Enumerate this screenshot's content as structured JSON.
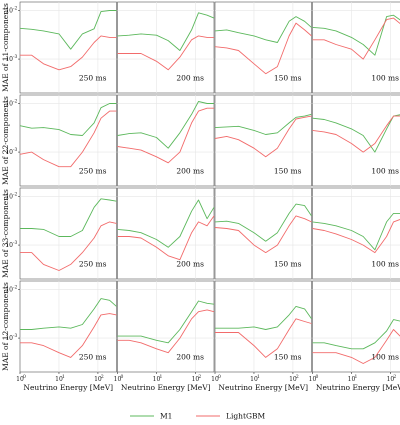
{
  "figure": {
    "legend_items": [
      {
        "name": "M1",
        "color": "#5cb85c"
      },
      {
        "name": "LightGBM",
        "color": "#f26b6b"
      }
    ],
    "xlabel": "Neutrino Energy [MeV]",
    "x_ticks": [
      "10",
      "10",
      "10"
    ],
    "x_tick_exp": [
      "0",
      "1",
      "2"
    ],
    "y_ticks": [
      "10",
      "10"
    ],
    "y_tick_exp": [
      "-2",
      "-3"
    ],
    "colors": {
      "grid": "#e6e6e6",
      "frame": "#555555",
      "panel_bg": "#ffffff"
    }
  },
  "chart_data": {
    "type": "line",
    "x_scale": "log",
    "y_scale": "log",
    "xlim": [
      1,
      300
    ],
    "ylim": [
      0.0002,
      0.015
    ],
    "x": [
      1,
      2,
      4,
      10,
      20,
      40,
      80,
      120,
      200,
      300
    ],
    "columns": [
      "250 ms",
      "200 ms",
      "150 ms",
      "100 ms"
    ],
    "rows": [
      {
        "ylabel": "MAE of 11-components",
        "panels": [
          {
            "label": "250 ms",
            "series": [
              {
                "name": "M1",
                "values": [
                  0.0043,
                  0.0041,
                  0.0038,
                  0.0033,
                  0.0016,
                  0.0033,
                  0.0042,
                  0.0095,
                  0.01,
                  0.01
                ]
              },
              {
                "name": "LightGBM",
                "values": [
                  0.0012,
                  0.0012,
                  0.0008,
                  0.0006,
                  0.0007,
                  0.0011,
                  0.0022,
                  0.003,
                  0.0028,
                  0.0028
                ]
              }
            ]
          },
          {
            "label": "200 ms",
            "series": [
              {
                "name": "M1",
                "values": [
                  0.003,
                  0.0031,
                  0.0033,
                  0.0031,
                  0.0024,
                  0.0015,
                  0.004,
                  0.009,
                  0.008,
                  0.007
                ]
              },
              {
                "name": "LightGBM",
                "values": [
                  0.0013,
                  0.0013,
                  0.0013,
                  0.0009,
                  0.0006,
                  0.0011,
                  0.0025,
                  0.003,
                  0.0028,
                  0.0028
                ]
              }
            ]
          },
          {
            "label": "150 ms",
            "series": [
              {
                "name": "M1",
                "values": [
                  0.0038,
                  0.004,
                  0.0035,
                  0.003,
                  0.0025,
                  0.0022,
                  0.006,
                  0.0075,
                  0.006,
                  0.0045
                ]
              },
              {
                "name": "LightGBM",
                "values": [
                  0.0018,
                  0.0017,
                  0.0015,
                  0.0008,
                  0.0005,
                  0.0007,
                  0.003,
                  0.0055,
                  0.004,
                  0.003
                ]
              }
            ]
          },
          {
            "label": "100 ms",
            "series": [
              {
                "name": "M1",
                "values": [
                  0.0045,
                  0.0043,
                  0.0038,
                  0.0028,
                  0.002,
                  0.0012,
                  0.0075,
                  0.008,
                  0.006,
                  0.005
                ]
              },
              {
                "name": "LightGBM",
                "values": [
                  0.0025,
                  0.0025,
                  0.002,
                  0.0016,
                  0.001,
                  0.0025,
                  0.0065,
                  0.007,
                  0.005,
                  0.0035
                ]
              }
            ]
          }
        ]
      },
      {
        "ylabel": "MAE of 22-components",
        "panels": [
          {
            "label": "250 ms",
            "series": [
              {
                "name": "M1",
                "values": [
                  0.0035,
                  0.0031,
                  0.0032,
                  0.0029,
                  0.0023,
                  0.0022,
                  0.004,
                  0.0082,
                  0.01,
                  0.01
                ]
              },
              {
                "name": "LightGBM",
                "values": [
                  0.0009,
                  0.001,
                  0.0007,
                  0.0005,
                  0.0005,
                  0.001,
                  0.0025,
                  0.005,
                  0.007,
                  0.007
                ]
              }
            ]
          },
          {
            "label": "200 ms",
            "series": [
              {
                "name": "M1",
                "values": [
                  0.0022,
                  0.0024,
                  0.0025,
                  0.002,
                  0.0012,
                  0.0025,
                  0.006,
                  0.011,
                  0.01,
                  0.01
                ]
              },
              {
                "name": "LightGBM",
                "values": [
                  0.0013,
                  0.0012,
                  0.0011,
                  0.0008,
                  0.0006,
                  0.001,
                  0.004,
                  0.007,
                  0.008,
                  0.008
                ]
              }
            ]
          },
          {
            "label": "150 ms",
            "series": [
              {
                "name": "M1",
                "values": [
                  0.0032,
                  0.0033,
                  0.0034,
                  0.0028,
                  0.0023,
                  0.0025,
                  0.004,
                  0.0052,
                  0.0055,
                  0.006
                ]
              },
              {
                "name": "LightGBM",
                "values": [
                  0.0019,
                  0.0021,
                  0.0018,
                  0.0012,
                  0.0008,
                  0.0012,
                  0.003,
                  0.0048,
                  0.0052,
                  0.0055
                ]
              }
            ]
          },
          {
            "label": "100 ms",
            "series": [
              {
                "name": "M1",
                "values": [
                  0.005,
                  0.0047,
                  0.004,
                  0.003,
                  0.0022,
                  0.001,
                  0.003,
                  0.0055,
                  0.006,
                  0.0055
                ]
              },
              {
                "name": "LightGBM",
                "values": [
                  0.0028,
                  0.0026,
                  0.0023,
                  0.0015,
                  0.001,
                  0.0015,
                  0.0035,
                  0.0055,
                  0.0055,
                  0.005
                ]
              }
            ]
          }
        ]
      },
      {
        "ylabel": "MAE of 33-components",
        "panels": [
          {
            "label": "250 ms",
            "series": [
              {
                "name": "M1",
                "values": [
                  0.0022,
                  0.0022,
                  0.0021,
                  0.0015,
                  0.0015,
                  0.002,
                  0.006,
                  0.009,
                  0.0085,
                  0.008
                ]
              },
              {
                "name": "LightGBM",
                "values": [
                  0.0007,
                  0.0007,
                  0.0004,
                  0.0003,
                  0.0004,
                  0.0007,
                  0.0014,
                  0.0025,
                  0.003,
                  0.0028
                ]
              }
            ]
          },
          {
            "label": "200 ms",
            "series": [
              {
                "name": "M1",
                "values": [
                  0.0021,
                  0.002,
                  0.0018,
                  0.0013,
                  0.0009,
                  0.0015,
                  0.005,
                  0.0085,
                  0.0035,
                  0.006
                ]
              },
              {
                "name": "LightGBM",
                "values": [
                  0.0015,
                  0.0015,
                  0.0014,
                  0.0009,
                  0.0006,
                  0.0005,
                  0.0018,
                  0.003,
                  0.0025,
                  0.004
                ]
              }
            ]
          },
          {
            "label": "150 ms",
            "series": [
              {
                "name": "M1",
                "values": [
                  0.003,
                  0.0031,
                  0.0028,
                  0.0018,
                  0.0012,
                  0.0018,
                  0.0045,
                  0.007,
                  0.0065,
                  0.004
                ]
              },
              {
                "name": "LightGBM",
                "values": [
                  0.0023,
                  0.0022,
                  0.002,
                  0.001,
                  0.0007,
                  0.001,
                  0.0025,
                  0.004,
                  0.0035,
                  0.003
                ]
              }
            ]
          },
          {
            "label": "100 ms",
            "series": [
              {
                "name": "M1",
                "values": [
                  0.003,
                  0.0028,
                  0.0025,
                  0.002,
                  0.0015,
                  0.0008,
                  0.003,
                  0.0045,
                  0.0045,
                  0.0065
                ]
              },
              {
                "name": "LightGBM",
                "values": [
                  0.0022,
                  0.002,
                  0.0017,
                  0.0013,
                  0.001,
                  0.0007,
                  0.0015,
                  0.003,
                  0.0035,
                  0.004
                ]
              }
            ]
          }
        ]
      },
      {
        "ylabel": "MAE of 12-components",
        "panels": [
          {
            "label": "250 ms",
            "series": [
              {
                "name": "M1",
                "values": [
                  0.0015,
                  0.0015,
                  0.0016,
                  0.0017,
                  0.0016,
                  0.0019,
                  0.004,
                  0.0065,
                  0.006,
                  0.0045
                ]
              },
              {
                "name": "LightGBM",
                "values": [
                  0.0008,
                  0.0008,
                  0.0007,
                  0.0005,
                  0.0004,
                  0.0007,
                  0.0017,
                  0.003,
                  0.0032,
                  0.003
                ]
              }
            ]
          },
          {
            "label": "200 ms",
            "series": [
              {
                "name": "M1",
                "values": [
                  0.0011,
                  0.0011,
                  0.0011,
                  0.0009,
                  0.0008,
                  0.0015,
                  0.0035,
                  0.0058,
                  0.0052,
                  0.005
                ]
              },
              {
                "name": "LightGBM",
                "values": [
                  0.0009,
                  0.0009,
                  0.0008,
                  0.0006,
                  0.0005,
                  0.001,
                  0.0025,
                  0.0035,
                  0.0038,
                  0.0035
                ]
              }
            ]
          },
          {
            "label": "150 ms",
            "series": [
              {
                "name": "M1",
                "values": [
                  0.0016,
                  0.0016,
                  0.0016,
                  0.0017,
                  0.0015,
                  0.0017,
                  0.003,
                  0.0045,
                  0.004,
                  0.0025
                ]
              },
              {
                "name": "LightGBM",
                "values": [
                  0.0013,
                  0.0013,
                  0.0013,
                  0.0007,
                  0.0004,
                  0.0006,
                  0.0015,
                  0.0025,
                  0.0022,
                  0.002
                ]
              }
            ]
          },
          {
            "label": "100 ms",
            "series": [
              {
                "name": "M1",
                "values": [
                  0.0008,
                  0.0008,
                  0.0007,
                  0.0006,
                  0.0006,
                  0.0008,
                  0.0014,
                  0.0024,
                  0.0022,
                  0.0021
                ]
              },
              {
                "name": "LightGBM",
                "values": [
                  0.0005,
                  0.0005,
                  0.0005,
                  0.0004,
                  0.0003,
                  0.0004,
                  0.0009,
                  0.0015,
                  0.001,
                  0.0006
                ]
              }
            ]
          }
        ]
      }
    ]
  }
}
